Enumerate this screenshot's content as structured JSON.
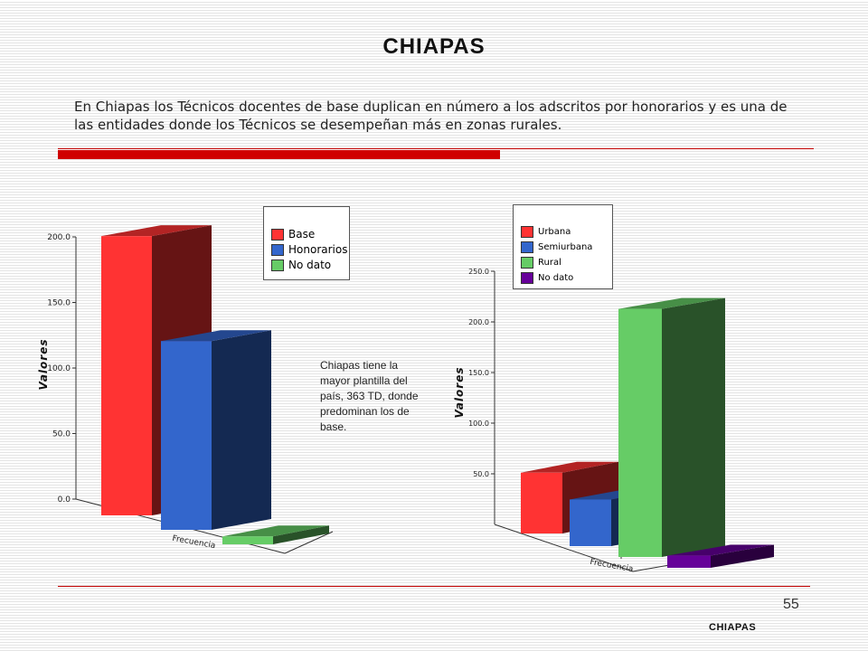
{
  "header": {
    "title": "CHIAPAS",
    "intro": "En Chiapas los Técnicos docentes de base duplican en número a los adscritos por  honorarios y es una de las entidades donde los Técnicos se desempeñan más en zonas rurales."
  },
  "note": "Chiapas tiene la mayor plantilla del país, 363 TD, donde predominan los de base.",
  "footer": {
    "page_number": "55",
    "label": "CHIAPAS"
  },
  "colors": {
    "accent_red": "#d00000"
  },
  "chart_data": [
    {
      "type": "bar",
      "categories": [
        "Frecuencia"
      ],
      "ylabel": "Valores",
      "ylim": [
        0,
        200
      ],
      "yticks": [
        "0.0",
        "50.0",
        "100.0",
        "150.0",
        "200.0"
      ],
      "series": [
        {
          "name": "Base",
          "values": [
            213
          ],
          "color": "#ff3333"
        },
        {
          "name": "Honorarios",
          "values": [
            144
          ],
          "color": "#3366cc"
        },
        {
          "name": "No dato",
          "values": [
            6
          ],
          "color": "#66cc66"
        }
      ],
      "legend_position": "top-right"
    },
    {
      "type": "bar",
      "categories": [
        "Frecuencia"
      ],
      "ylabel": "Valores",
      "ylim": [
        0,
        250
      ],
      "yticks": [
        "50.0",
        "100.0",
        "150.0",
        "200.0",
        "250.0"
      ],
      "series": [
        {
          "name": "Urbana",
          "values": [
            60
          ],
          "color": "#ff3333"
        },
        {
          "name": "Semiurbana",
          "values": [
            46
          ],
          "color": "#3366cc"
        },
        {
          "name": "Rural",
          "values": [
            245
          ],
          "color": "#66cc66"
        },
        {
          "name": "No dato",
          "values": [
            12
          ],
          "color": "#660099"
        }
      ],
      "legend_position": "top-right"
    }
  ]
}
